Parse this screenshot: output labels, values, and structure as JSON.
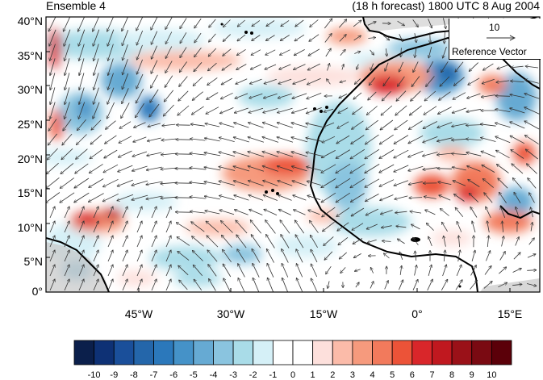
{
  "title_left": "Ensemble 4",
  "title_right": "(18 h forecast) 1800 UTC 8 Aug 2004",
  "lat_labels": [
    "40°N",
    "35°N",
    "30°N",
    "25°N",
    "20°N",
    "15°N",
    "10°N",
    "5°N",
    "0°"
  ],
  "lon_labels": [
    "45°W",
    "30°W",
    "15°W",
    "0°",
    "15°E"
  ],
  "reference_vector": {
    "magnitude": "10",
    "label": "Reference Vector"
  },
  "colorbar": {
    "labels": [
      "-10",
      "-9",
      "-8",
      "-7",
      "-6",
      "-5",
      "-4",
      "-3",
      "-2",
      "-1",
      "0",
      "1",
      "2",
      "3",
      "4",
      "5",
      "6",
      "7",
      "8",
      "9",
      "10"
    ],
    "colors": [
      "#0b1f4b",
      "#0e3175",
      "#1a4f9a",
      "#2466aa",
      "#2b78bb",
      "#4592c8",
      "#66aad3",
      "#8ac4df",
      "#a9dce8",
      "#d5f0f7",
      "#ffffff",
      "#ffffff",
      "#fde0dc",
      "#fbbba9",
      "#f69a7d",
      "#f27a5c",
      "#ec5338",
      "#d9262a",
      "#c0181f",
      "#9a1118",
      "#7a0a12",
      "#5b0009"
    ]
  },
  "map": {
    "lat_range": [
      0,
      40
    ],
    "lon_range": [
      -57,
      20
    ],
    "land_mask_color": "#c8c8c8",
    "coastline_color": "#000000",
    "vector_color": "#333333"
  }
}
